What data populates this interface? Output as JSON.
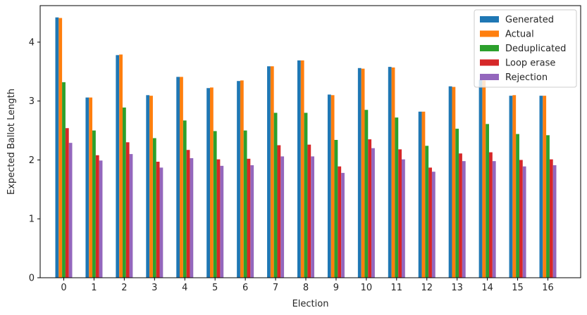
{
  "chart_data": {
    "type": "bar",
    "title": "",
    "xlabel": "Election",
    "ylabel": "Expected Ballot Length",
    "ylim": [
      0,
      4.62
    ],
    "yticks": [
      0,
      1,
      2,
      3,
      4
    ],
    "grid": false,
    "legend_position": "top-right",
    "categories": [
      "0",
      "1",
      "2",
      "3",
      "4",
      "5",
      "6",
      "7",
      "8",
      "9",
      "10",
      "11",
      "12",
      "13",
      "14",
      "15",
      "16"
    ],
    "series": [
      {
        "name": "Generated",
        "color": "#1f77b4",
        "values": [
          4.42,
          3.06,
          3.78,
          3.1,
          3.41,
          3.22,
          3.34,
          3.59,
          3.69,
          3.11,
          3.56,
          3.58,
          2.82,
          3.25,
          3.36,
          3.09,
          3.09
        ]
      },
      {
        "name": "Actual",
        "color": "#ff7f0e",
        "values": [
          4.41,
          3.06,
          3.79,
          3.09,
          3.41,
          3.23,
          3.35,
          3.59,
          3.69,
          3.1,
          3.55,
          3.57,
          2.82,
          3.24,
          3.35,
          3.1,
          3.09
        ]
      },
      {
        "name": "Deduplicated",
        "color": "#2ca02c",
        "values": [
          3.32,
          2.5,
          2.89,
          2.37,
          2.67,
          2.49,
          2.5,
          2.8,
          2.8,
          2.34,
          2.85,
          2.72,
          2.24,
          2.53,
          2.61,
          2.44,
          2.42
        ]
      },
      {
        "name": "Loop erase",
        "color": "#d62728",
        "values": [
          2.54,
          2.08,
          2.3,
          1.97,
          2.17,
          2.01,
          2.02,
          2.25,
          2.26,
          1.89,
          2.35,
          2.18,
          1.87,
          2.11,
          2.13,
          2.0,
          2.01
        ]
      },
      {
        "name": "Rejection",
        "color": "#9467bd",
        "values": [
          2.29,
          1.99,
          2.1,
          1.87,
          2.03,
          1.9,
          1.91,
          2.06,
          2.06,
          1.78,
          2.2,
          2.01,
          1.8,
          1.98,
          1.98,
          1.89,
          1.91
        ]
      }
    ]
  }
}
